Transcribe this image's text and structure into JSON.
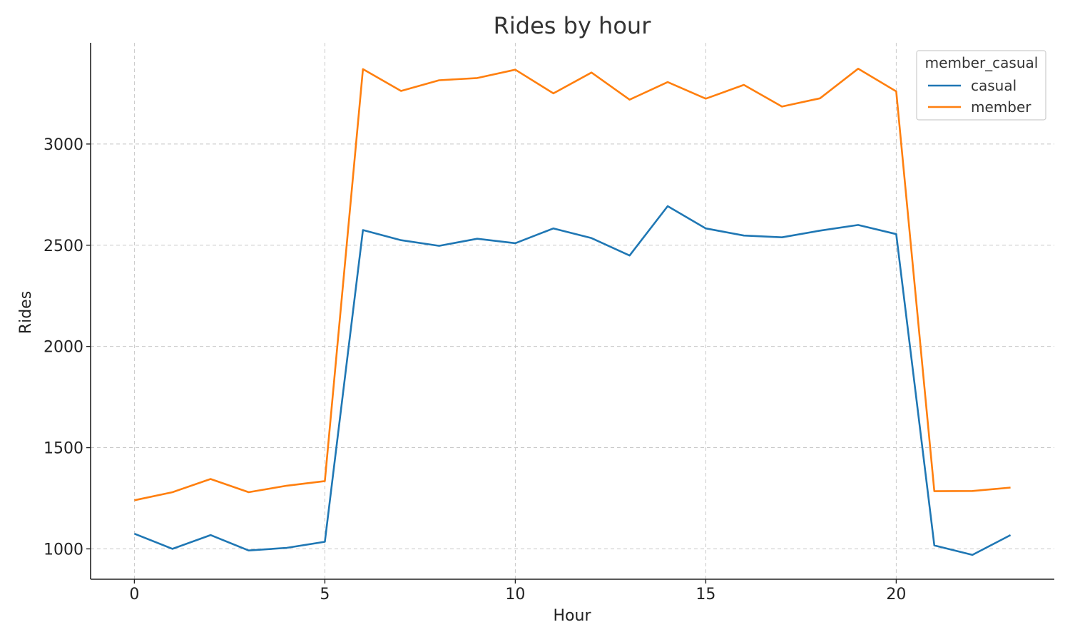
{
  "chart_data": {
    "type": "line",
    "title": "Rides by hour",
    "xlabel": "Hour",
    "ylabel": "Rides",
    "x": [
      0,
      1,
      2,
      3,
      4,
      5,
      6,
      7,
      8,
      9,
      10,
      11,
      12,
      13,
      14,
      15,
      16,
      17,
      18,
      19,
      20,
      21,
      22,
      23
    ],
    "xlim": [
      -1.15,
      24.15
    ],
    "ylim": [
      850,
      3500
    ],
    "xticks": [
      0,
      5,
      10,
      15,
      20
    ],
    "yticks": [
      1000,
      1500,
      2000,
      2500,
      3000
    ],
    "xtick_labels": [
      "0",
      "5",
      "10",
      "15",
      "20"
    ],
    "ytick_labels": [
      "1000",
      "1500",
      "2000",
      "2500",
      "3000"
    ],
    "grid": true,
    "legend": {
      "title": "member_casual",
      "placement": "top-right"
    },
    "series": [
      {
        "name": "casual",
        "color": "#1f77b4",
        "values": [
          1075,
          1000,
          1068,
          992,
          1005,
          1035,
          2575,
          2525,
          2497,
          2532,
          2510,
          2583,
          2535,
          2449,
          2693,
          2583,
          2548,
          2539,
          2572,
          2600,
          2555,
          1017,
          970,
          1068
        ]
      },
      {
        "name": "member",
        "color": "#ff7f0e",
        "values": [
          1240,
          1280,
          1345,
          1280,
          1312,
          1335,
          3370,
          3262,
          3315,
          3326,
          3367,
          3250,
          3353,
          3219,
          3306,
          3224,
          3292,
          3185,
          3226,
          3372,
          3260,
          1285,
          1286,
          1303
        ]
      }
    ]
  }
}
